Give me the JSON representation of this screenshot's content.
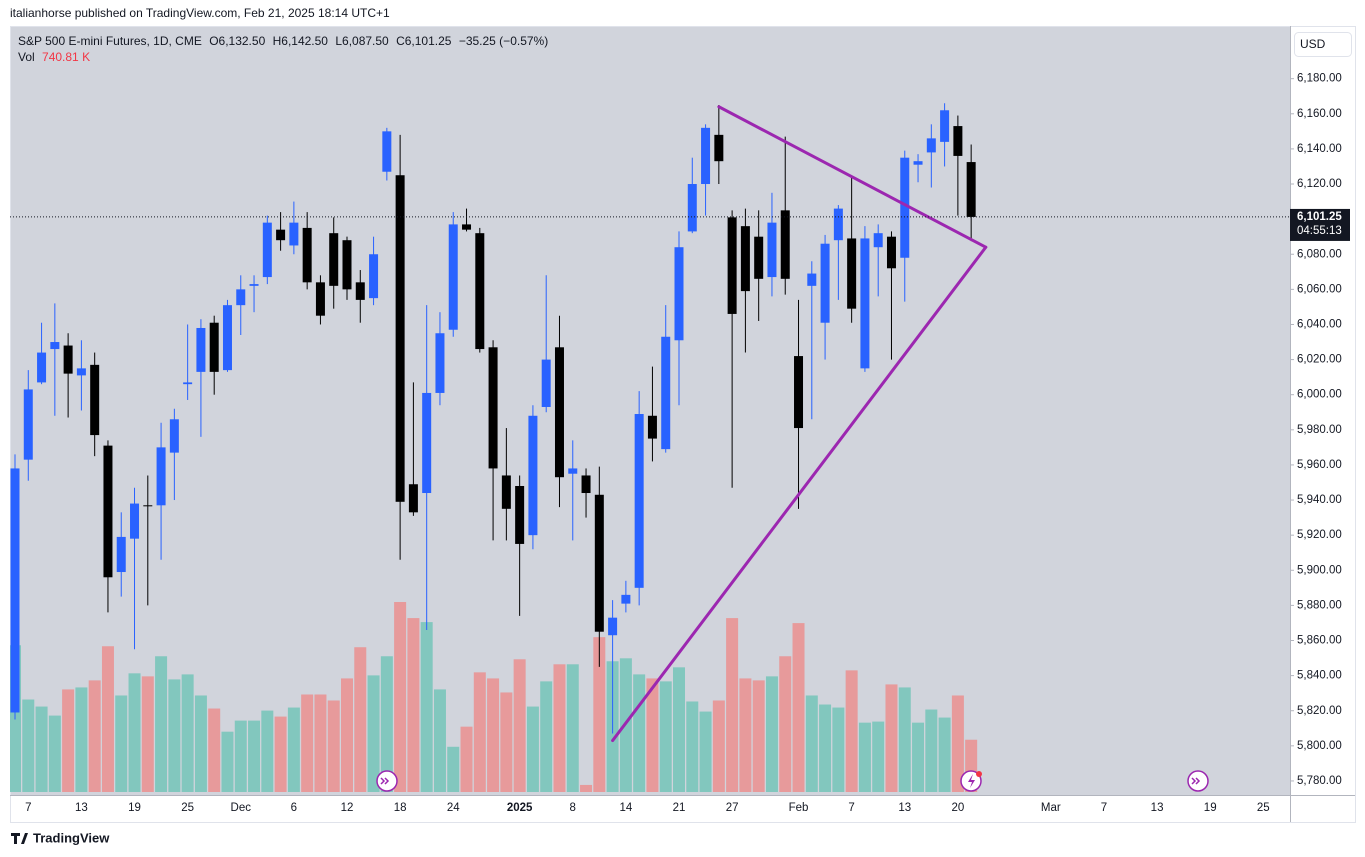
{
  "publish_line": "italianhorse published on TradingView.com, Feb 21, 2025 18:14 UTC+1",
  "brand": "TradingView",
  "chart_data": {
    "type": "candlestick",
    "title": "S&P 500 E-mini Futures, 1D, CME",
    "header": {
      "items": [
        {
          "key": "O",
          "label": "6,132.50"
        },
        {
          "key": "H",
          "label": "6,142.50"
        },
        {
          "key": "L",
          "label": "6,087.50"
        },
        {
          "key": "C",
          "label": "6,101.25"
        }
      ],
      "change_label": "−35.25 (−0.57%)"
    },
    "currency": "USD",
    "up_color": "#2962ff",
    "down_color": "#000000",
    "categories": [
      null,
      "7",
      null,
      null,
      null,
      "13",
      null,
      null,
      null,
      "19",
      null,
      null,
      null,
      "25",
      null,
      null,
      null,
      "Dec",
      null,
      null,
      null,
      "6",
      null,
      null,
      null,
      "12",
      null,
      null,
      null,
      "18",
      null,
      null,
      null,
      "24",
      null,
      null,
      null,
      null,
      "2025",
      null,
      null,
      null,
      "8",
      null,
      null,
      null,
      "14",
      null,
      null,
      null,
      "21",
      null,
      null,
      null,
      "27",
      null,
      null,
      null,
      null,
      "Feb",
      null,
      null,
      null,
      "7",
      null,
      null,
      null,
      "13",
      null,
      null,
      null,
      "20",
      null,
      null,
      null,
      null,
      null,
      null,
      "Mar",
      null,
      null,
      null,
      "7",
      null,
      null,
      null,
      "13",
      null,
      null,
      null,
      "19",
      null,
      null,
      null,
      "25",
      null
    ],
    "open": [
      5819,
      5963,
      6007,
      6026,
      6028,
      6011,
      6017,
      5971,
      5899,
      5918,
      5937,
      5937,
      5967,
      6006,
      6013,
      6041,
      6014,
      6051,
      6062,
      6067,
      6094,
      6085,
      6095,
      6064,
      6092,
      6088,
      6064,
      6055,
      6127,
      6125,
      5949,
      5944,
      6001,
      6037,
      6097,
      6092,
      6027,
      5954,
      5948,
      5920,
      5993,
      6027,
      5955,
      5954,
      5943,
      5863,
      5881,
      5890,
      5988,
      5969,
      6031,
      6093,
      6120,
      6148,
      6101,
      6096,
      6090,
      6067,
      6105,
      6022,
      6062,
      6041,
      6088,
      6089,
      6015,
      6084,
      6090,
      6078,
      6131,
      6138,
      6144,
      6153,
      6132.5,
      null,
      null,
      null,
      null,
      null,
      null,
      null,
      null,
      null,
      null,
      null,
      null,
      null,
      null,
      null,
      null,
      null,
      null,
      null,
      null,
      null,
      null,
      null
    ],
    "high": [
      5966,
      6014,
      6041,
      6052,
      6035,
      6031,
      6024,
      5974,
      5933,
      5947,
      5954,
      5984,
      5992,
      6040,
      6043,
      6045,
      6054,
      6068,
      6068,
      6102,
      6104,
      6110,
      6104,
      6068,
      6101,
      6090,
      6071,
      6090,
      6152,
      6148,
      6007,
      6051,
      6047,
      6104,
      6106,
      6095,
      6031,
      5981,
      5954,
      5994,
      6068,
      6045,
      5974,
      5958,
      5959,
      5883,
      5894,
      6002,
      6016,
      6051,
      6093,
      6135,
      6154,
      6165,
      6105,
      6106,
      6105,
      6115,
      6147,
      6054,
      6076,
      6091,
      6108,
      6124,
      6096,
      6097,
      6093,
      6139,
      6137,
      6154,
      6166,
      6159,
      6142.5,
      null,
      null,
      null,
      null,
      null,
      null,
      null,
      null,
      null,
      null,
      null,
      null,
      null,
      null,
      null,
      null,
      null,
      null,
      null,
      null,
      null,
      null,
      null
    ],
    "low": [
      5815,
      5951,
      6006,
      5988,
      5987,
      5991,
      5965,
      5876,
      5885,
      5855,
      5880,
      5906,
      5940,
      5997,
      5976,
      6000,
      6013,
      6034,
      6047,
      6063,
      6082,
      6080,
      6060,
      6040,
      6049,
      6054,
      6041,
      6051,
      6122,
      5906,
      5931,
      5866,
      5994,
      6033,
      6093,
      6024,
      5917,
      5917,
      5874,
      5912,
      5990,
      5936,
      5917,
      5930,
      5845,
      5807,
      5876,
      5880,
      5962,
      5967,
      5994,
      6092,
      6102,
      6120,
      5947,
      6024,
      6042,
      6056,
      6057,
      5935,
      5986,
      6020,
      6054,
      6041,
      6013,
      6056,
      6020,
      6053,
      6121,
      6118,
      6130,
      6102,
      6087.5,
      null,
      null,
      null,
      null,
      null,
      null,
      null,
      null,
      null,
      null,
      null,
      null,
      null,
      null,
      null,
      null,
      null,
      null,
      null,
      null,
      null,
      null,
      null
    ],
    "close": [
      5958,
      6003,
      6024,
      6030,
      6012,
      6015,
      5977,
      5896,
      5919,
      5938,
      5936.5,
      5970,
      5986,
      6007,
      6038,
      6013,
      6051,
      6060,
      6063,
      6098,
      6088,
      6098,
      6064,
      6045,
      6062,
      6060,
      6054,
      6080,
      6150,
      5939,
      5933,
      6001,
      6035,
      6097,
      6094,
      6026,
      5958,
      5935,
      5915,
      5988,
      6020,
      5953,
      5958,
      5944,
      5865,
      5873,
      5886,
      5989,
      5975,
      6033,
      6084,
      6120,
      6152,
      6133,
      6046,
      6059,
      6066,
      6098,
      6066,
      5981,
      6069,
      6086,
      6106,
      6049,
      6089,
      6092,
      6072,
      6135,
      6133,
      6146,
      6162,
      6136,
      6101.25,
      null,
      null,
      null,
      null,
      null,
      null,
      null,
      null,
      null,
      null,
      null,
      null,
      null,
      null,
      null,
      null,
      null,
      null,
      null,
      null,
      null,
      null,
      null
    ],
    "volume": {
      "name": "Vol",
      "last_value_label": "740.81 K",
      "up_color": "#82c7be",
      "down_color": "#e79a9b",
      "label_color": "#f23645",
      "values": [
        2080000,
        1311000,
        1211000,
        1083000,
        1454000,
        1482000,
        1582000,
        2066000,
        1368000,
        1682000,
        1639000,
        1924000,
        1596000,
        1667000,
        1368000,
        1183000,
        855000,
        1012000,
        1012000,
        1154000,
        1069000,
        1197000,
        1382000,
        1382000,
        1297000,
        1610000,
        2052000,
        1653000,
        1924000,
        2693000,
        2465000,
        2408000,
        1454000,
        641000,
        926000,
        1696000,
        1610000,
        1411000,
        1881000,
        1211000,
        1568000,
        1810000,
        1810000,
        100000,
        2195000,
        1853000,
        1895000,
        1667000,
        1610000,
        1568000,
        1767000,
        1283000,
        1140000,
        1297000,
        2465000,
        1610000,
        1582000,
        1639000,
        1924000,
        2394000,
        1368000,
        1240000,
        1197000,
        1724000,
        983000,
        998000,
        1525000,
        1482000,
        983000,
        1169000,
        1055000,
        1368000,
        740810,
        null,
        null,
        null,
        null,
        null,
        null,
        null,
        null,
        null,
        null,
        null,
        null,
        null,
        null,
        null,
        null,
        null,
        null,
        null,
        null,
        null,
        null,
        null
      ]
    },
    "last_price_label": "6,101.25",
    "countdown": "04:55:13",
    "ylim": [
      5772,
      6210
    ],
    "yticks": [
      {
        "value": 5780,
        "label": "5,780.00"
      },
      {
        "value": 5800,
        "label": "5,800.00"
      },
      {
        "value": 5820,
        "label": "5,820.00"
      },
      {
        "value": 5840,
        "label": "5,840.00"
      },
      {
        "value": 5860,
        "label": "5,860.00"
      },
      {
        "value": 5880,
        "label": "5,880.00"
      },
      {
        "value": 5900,
        "label": "5,900.00"
      },
      {
        "value": 5920,
        "label": "5,920.00"
      },
      {
        "value": 5940,
        "label": "5,940.00"
      },
      {
        "value": 5960,
        "label": "5,960.00"
      },
      {
        "value": 5980,
        "label": "5,980.00"
      },
      {
        "value": 6000,
        "label": "6,000.00"
      },
      {
        "value": 6020,
        "label": "6,020.00"
      },
      {
        "value": 6040,
        "label": "6,040.00"
      },
      {
        "value": 6060,
        "label": "6,060.00"
      },
      {
        "value": 6080,
        "label": "6,080.00"
      },
      {
        "value": 6100,
        "label": "6,100.00"
      },
      {
        "value": 6120,
        "label": "6,120.00"
      },
      {
        "value": 6140,
        "label": "6,140.00"
      },
      {
        "value": 6160,
        "label": "6,160.00"
      },
      {
        "value": 6180,
        "label": "6,180.00"
      }
    ],
    "grid": false,
    "drawings": [
      {
        "color": "#9c27b0",
        "points": [
          [
            53,
            6164
          ],
          [
            73.1,
            6084
          ]
        ]
      },
      {
        "color": "#9c27b0",
        "points": [
          [
            45,
            5803
          ],
          [
            73.1,
            6084
          ]
        ]
      }
    ]
  }
}
